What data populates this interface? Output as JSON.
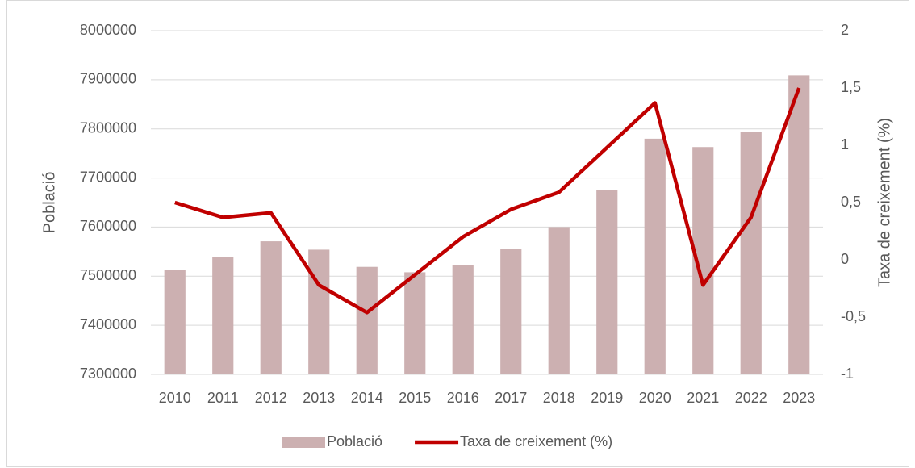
{
  "chart_data": {
    "type": "bar-line",
    "categories": [
      "2010",
      "2011",
      "2012",
      "2013",
      "2014",
      "2015",
      "2016",
      "2017",
      "2018",
      "2019",
      "2020",
      "2021",
      "2022",
      "2023"
    ],
    "series": [
      {
        "name": "Població",
        "type": "bar",
        "color": "#ccb0b1",
        "values": [
          7512000,
          7539000,
          7571000,
          7554000,
          7519000,
          7508000,
          7523000,
          7556000,
          7600000,
          7675000,
          7780000,
          7763000,
          7793000,
          7909000
        ]
      },
      {
        "name": "Taxa de creixement (%)",
        "type": "line",
        "axis": "y2",
        "color": "#c00000",
        "values": [
          0.5,
          0.37,
          0.41,
          -0.22,
          -0.46,
          -0.13,
          0.2,
          0.44,
          0.59,
          0.98,
          1.37,
          -0.22,
          0.37,
          1.5
        ]
      }
    ],
    "ylabel": "Població",
    "y2label": "Taxa de creixement (%)",
    "ylim": [
      7300000,
      8000000
    ],
    "yticks": [
      7300000,
      7400000,
      7500000,
      7600000,
      7700000,
      7800000,
      7900000,
      8000000
    ],
    "y2lim": [
      -1,
      2
    ],
    "y2ticks": [
      -1,
      {
        "value": -0.5,
        "label": "-0,5"
      },
      0,
      {
        "value": 0.5,
        "label": "0,5"
      },
      1,
      {
        "value": 1.5,
        "label": "1,5"
      },
      2
    ],
    "grid": true,
    "legend": "bottom"
  }
}
